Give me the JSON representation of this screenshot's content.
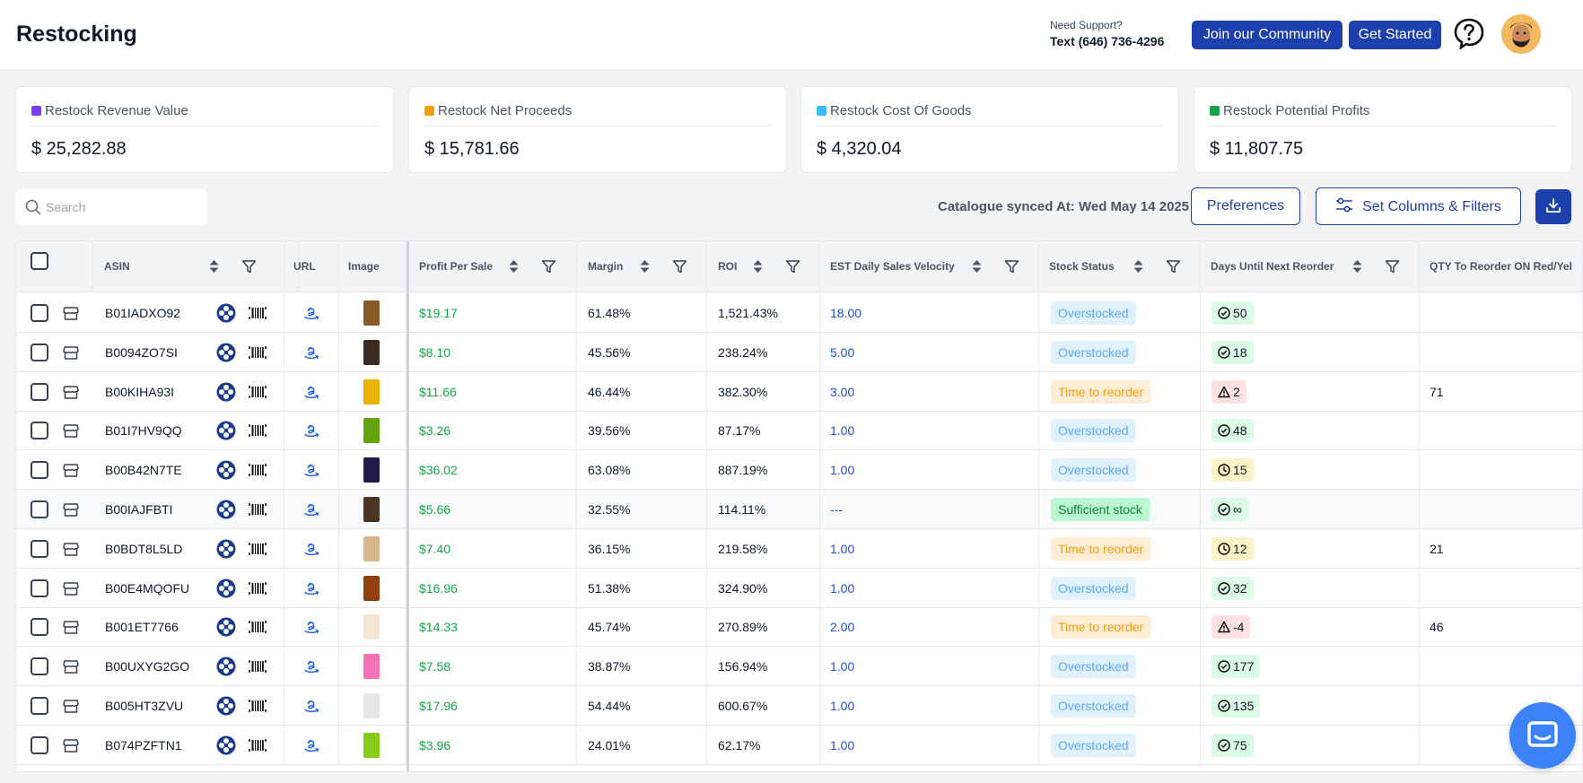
{
  "header": {
    "title": "Restocking",
    "support_label": "Need Support?",
    "support_phone": "Text (646) 736-4296",
    "community_button": "Join our Community",
    "started_button": "Get Started"
  },
  "cards": [
    {
      "label": "Restock Revenue Value",
      "value": "$ 25,282.88",
      "color": "#7c3aed"
    },
    {
      "label": "Restock Net Proceeds",
      "value": "$ 15,781.66",
      "color": "#f59e0b"
    },
    {
      "label": "Restock Cost Of Goods",
      "value": "$ 4,320.04",
      "color": "#38bdf8"
    },
    {
      "label": "Restock Potential Profits",
      "value": "$ 11,807.75",
      "color": "#16a34a"
    }
  ],
  "toolbar": {
    "search_placeholder": "Search",
    "sync_text": "Catalogue synced At: Wed May 14 2025",
    "preferences_button": "Preferences",
    "columns_button": "Set Columns & Filters"
  },
  "table": {
    "headers": {
      "asin": "ASIN",
      "url": "URL",
      "image": "Image",
      "profit": "Profit Per Sale",
      "margin": "Margin",
      "roi": "ROI",
      "velocity": "EST Daily Sales Velocity",
      "stock": "Stock Status",
      "days": "Days Until Next Reorder",
      "qty": "QTY To Reorder ON Red/Yel"
    },
    "rows": [
      {
        "asin": "B01IADXO92",
        "profit": "$19.17",
        "margin": "61.48%",
        "roi": "1,521.43%",
        "velocity": "18.00",
        "stock": "Overstocked",
        "days": "50",
        "days_type": "ok",
        "qty": "",
        "thumb": "#8b5a2b"
      },
      {
        "asin": "B0094ZO7SI",
        "profit": "$8.10",
        "margin": "45.56%",
        "roi": "238.24%",
        "velocity": "5.00",
        "stock": "Overstocked",
        "days": "18",
        "days_type": "ok",
        "qty": "",
        "thumb": "#3b2a1f"
      },
      {
        "asin": "B00KIHA93I",
        "profit": "$11.66",
        "margin": "46.44%",
        "roi": "382.30%",
        "velocity": "3.00",
        "stock": "Time to reorder",
        "days": "2",
        "days_type": "warn",
        "qty": "71",
        "thumb": "#eab308"
      },
      {
        "asin": "B01I7HV9QQ",
        "profit": "$3.26",
        "margin": "39.56%",
        "roi": "87.17%",
        "velocity": "1.00",
        "stock": "Overstocked",
        "days": "48",
        "days_type": "ok",
        "qty": "",
        "thumb": "#65a30d"
      },
      {
        "asin": "B00B42N7TE",
        "profit": "$36.02",
        "margin": "63.08%",
        "roi": "887.19%",
        "velocity": "1.00",
        "stock": "Overstocked",
        "days": "15",
        "days_type": "clock",
        "qty": "",
        "thumb": "#1e1b4b"
      },
      {
        "asin": "B00IAJFBTI",
        "profit": "$5.66",
        "margin": "32.55%",
        "roi": "114.11%",
        "velocity": "---",
        "stock": "Sufficient stock",
        "days": "∞",
        "days_type": "ok",
        "qty": "",
        "thumb": "#4b3621"
      },
      {
        "asin": "B0BDT8L5LD",
        "profit": "$7.40",
        "margin": "36.15%",
        "roi": "219.58%",
        "velocity": "1.00",
        "stock": "Time to reorder",
        "days": "12",
        "days_type": "clock",
        "qty": "21",
        "thumb": "#d6b88a"
      },
      {
        "asin": "B00E4MQOFU",
        "profit": "$16.96",
        "margin": "51.38%",
        "roi": "324.90%",
        "velocity": "1.00",
        "stock": "Overstocked",
        "days": "32",
        "days_type": "ok",
        "qty": "",
        "thumb": "#92400e"
      },
      {
        "asin": "B001ET7766",
        "profit": "$14.33",
        "margin": "45.74%",
        "roi": "270.89%",
        "velocity": "2.00",
        "stock": "Time to reorder",
        "days": "-4",
        "days_type": "warn",
        "qty": "46",
        "thumb": "#f5e6d3"
      },
      {
        "asin": "B00UXYG2GO",
        "profit": "$7.58",
        "margin": "38.87%",
        "roi": "156.94%",
        "velocity": "1.00",
        "stock": "Overstocked",
        "days": "177",
        "days_type": "ok",
        "qty": "",
        "thumb": "#f472b6"
      },
      {
        "asin": "B005HT3ZVU",
        "profit": "$17.96",
        "margin": "54.44%",
        "roi": "600.67%",
        "velocity": "1.00",
        "stock": "Overstocked",
        "days": "135",
        "days_type": "ok",
        "qty": "",
        "thumb": "#e5e7eb"
      },
      {
        "asin": "B074PZFTN1",
        "profit": "$3.96",
        "margin": "24.01%",
        "roi": "62.17%",
        "velocity": "1.00",
        "stock": "Overstocked",
        "days": "75",
        "days_type": "ok",
        "qty": "",
        "thumb": "#84cc16"
      }
    ]
  },
  "colors": {
    "accent": "#1e40af",
    "profit_green": "#16a34a",
    "velocity_blue": "#1d4ed8"
  }
}
